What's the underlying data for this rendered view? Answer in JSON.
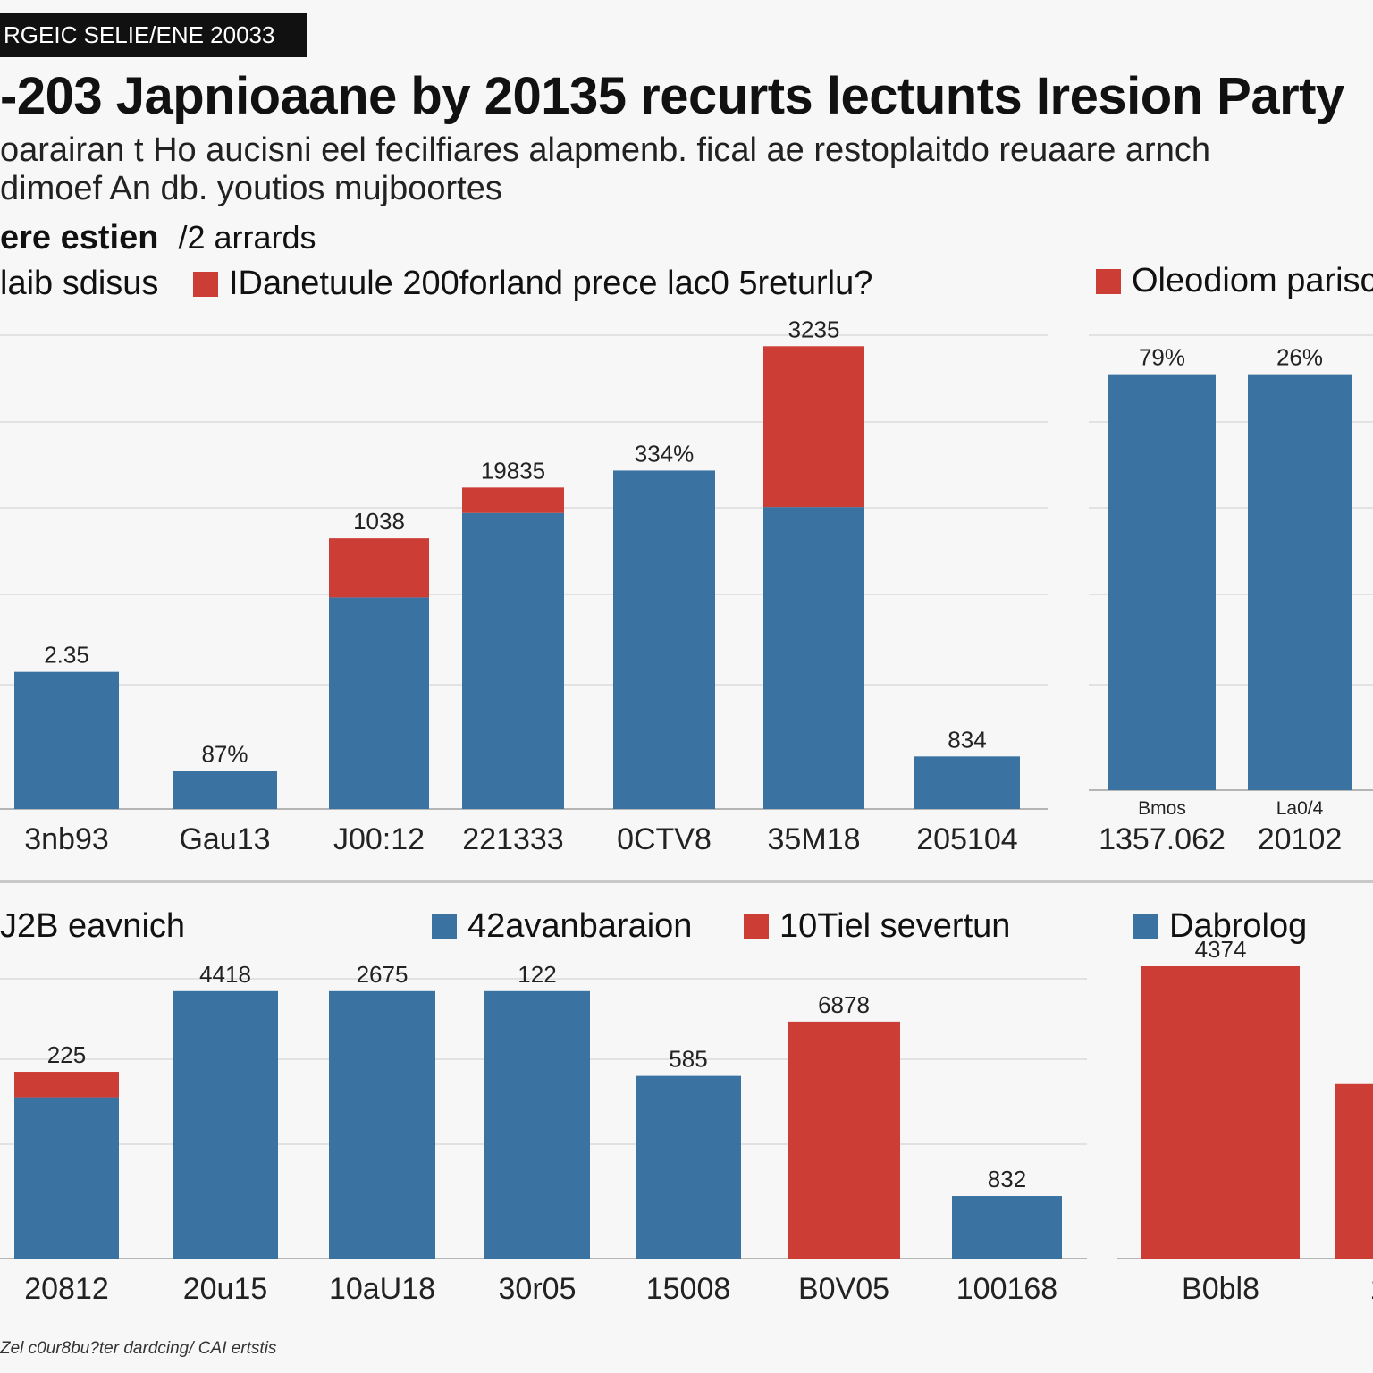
{
  "header": {
    "tag": "RGEIC SELIE/ENE 20033",
    "title": "-203 Japnioaane by 20135  recurts lectunts Iresion Party",
    "subtitle_line1": "oarairan t Ho aucisni eel fecilfiares alapmenb. fical ae restoplaitdo reuaare arnch",
    "subtitle_line2": "dimoef An db. youtios mujboortes",
    "section_bold": "ere estien",
    "section_rest": "/2 arrards"
  },
  "legends": {
    "top_left": "laib sdisus",
    "top_red": "IDanetuule 200forland prece lac0 5returlu?",
    "top_right_red": "Oleodiom parisc",
    "bottom_left": "J2B eavnich",
    "bottom_blue": "42avanbaraion",
    "bottom_red": "10Tiel severtun",
    "bottom_right_blue": "Dabrolog"
  },
  "footnote": "Zel c0ur8bu?ter dardcing/ CAI ertstis",
  "colors": {
    "blue": "#3a73a2",
    "red": "#cc3d35"
  },
  "chart_data": [
    {
      "type": "bar",
      "stacked": true,
      "ylim": [
        0,
        560
      ],
      "grid": true,
      "categories": [
        "3nb93",
        "Gau13",
        "J00:12",
        "221333",
        "0CTV8",
        "35M18",
        "205104"
      ],
      "series": [
        {
          "color": "#3a73a2",
          "values": [
            162,
            45,
            250,
            350,
            400,
            357,
            62
          ]
        },
        {
          "color": "#cc3d35",
          "values": [
            0,
            0,
            70,
            30,
            0,
            190,
            0
          ]
        }
      ],
      "data_labels": [
        "2.35",
        "87%",
        "1038",
        "19835",
        "334%",
        "3235",
        "834"
      ]
    },
    {
      "type": "bar",
      "ylim": [
        0,
        560
      ],
      "grid": true,
      "categories": [
        "1357.062",
        "20102"
      ],
      "category_sublabels": [
        "Bmos",
        "La0/4"
      ],
      "series": [
        {
          "color": "#3a73a2",
          "values": [
            512,
            512
          ]
        }
      ],
      "data_labels": [
        "79%",
        "26%"
      ]
    },
    {
      "type": "bar",
      "stacked": true,
      "ylim": [
        0,
        340
      ],
      "grid": true,
      "categories": [
        "20812",
        "20u15",
        "10aU18",
        "30r05",
        "15008",
        "B0V05",
        "100168"
      ],
      "series": [
        {
          "color": "#3a73a2",
          "values": [
            196,
            325,
            325,
            325,
            222,
            0,
            76
          ]
        },
        {
          "color": "#cc3d35",
          "values": [
            31,
            0,
            0,
            0,
            0,
            288,
            0
          ]
        }
      ],
      "data_labels": [
        "225",
        "4418",
        "2675",
        "122",
        "585",
        "6878",
        "832"
      ]
    },
    {
      "type": "bar",
      "ylim": [
        0,
        340
      ],
      "grid": false,
      "categories": [
        "B0bl8",
        "1."
      ],
      "series": [
        {
          "color": "#cc3d35",
          "values": [
            340,
            203
          ]
        }
      ],
      "data_labels": [
        "4374",
        ""
      ]
    }
  ]
}
